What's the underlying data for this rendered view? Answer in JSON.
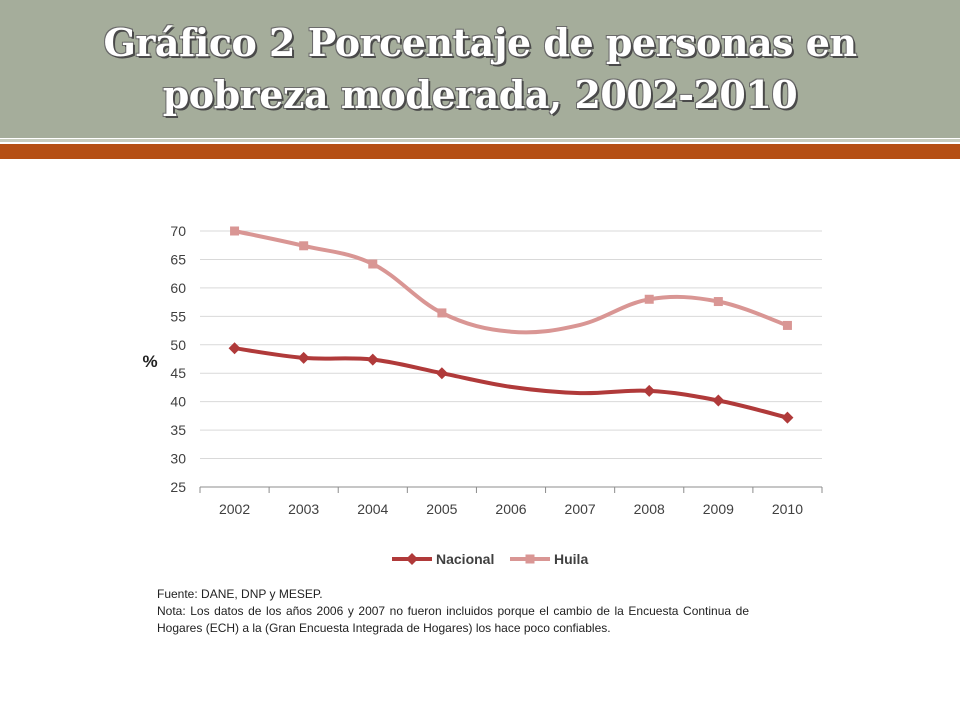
{
  "slide": {
    "title": "Gráfico 2 Porcentaje de personas en pobreza moderada, 2002-2010",
    "source": "Fuente: DANE, DNP y MESEP.",
    "note": "Nota: Los datos de los años 2006 y 2007 no fueron incluidos porque el cambio de la Encuesta Continua de Hogares (ECH) a la (Gran Encuesta Integrada de Hogares) los hace poco confiables."
  },
  "colors": {
    "title_band": "#a5ad9b",
    "accent_bar": "#b54f14",
    "nacional": "#b03a3a",
    "huila": "#d99694"
  },
  "chart_data": {
    "type": "line",
    "title": "",
    "xlabel": "",
    "ylabel": "%",
    "ylim": [
      25,
      70
    ],
    "yticks": [
      25,
      30,
      35,
      40,
      45,
      50,
      55,
      60,
      65,
      70
    ],
    "categories": [
      "2002",
      "2003",
      "2004",
      "2005",
      "2006",
      "2007",
      "2008",
      "2009",
      "2010"
    ],
    "grid": true,
    "legend_position": "bottom",
    "series": [
      {
        "name": "Nacional",
        "color": "#b03a3a",
        "marker": "diamond",
        "values": [
          49.4,
          47.7,
          47.4,
          45.0,
          42.6,
          41.5,
          41.9,
          40.2,
          37.2
        ],
        "markers_shown": [
          true,
          true,
          true,
          true,
          false,
          false,
          true,
          true,
          true
        ]
      },
      {
        "name": "Huila",
        "color": "#d99694",
        "marker": "square",
        "values": [
          70.0,
          67.4,
          64.2,
          55.6,
          52.3,
          53.5,
          58.0,
          57.6,
          53.4
        ],
        "markers_shown": [
          true,
          true,
          true,
          true,
          false,
          false,
          true,
          true,
          true
        ]
      }
    ]
  }
}
